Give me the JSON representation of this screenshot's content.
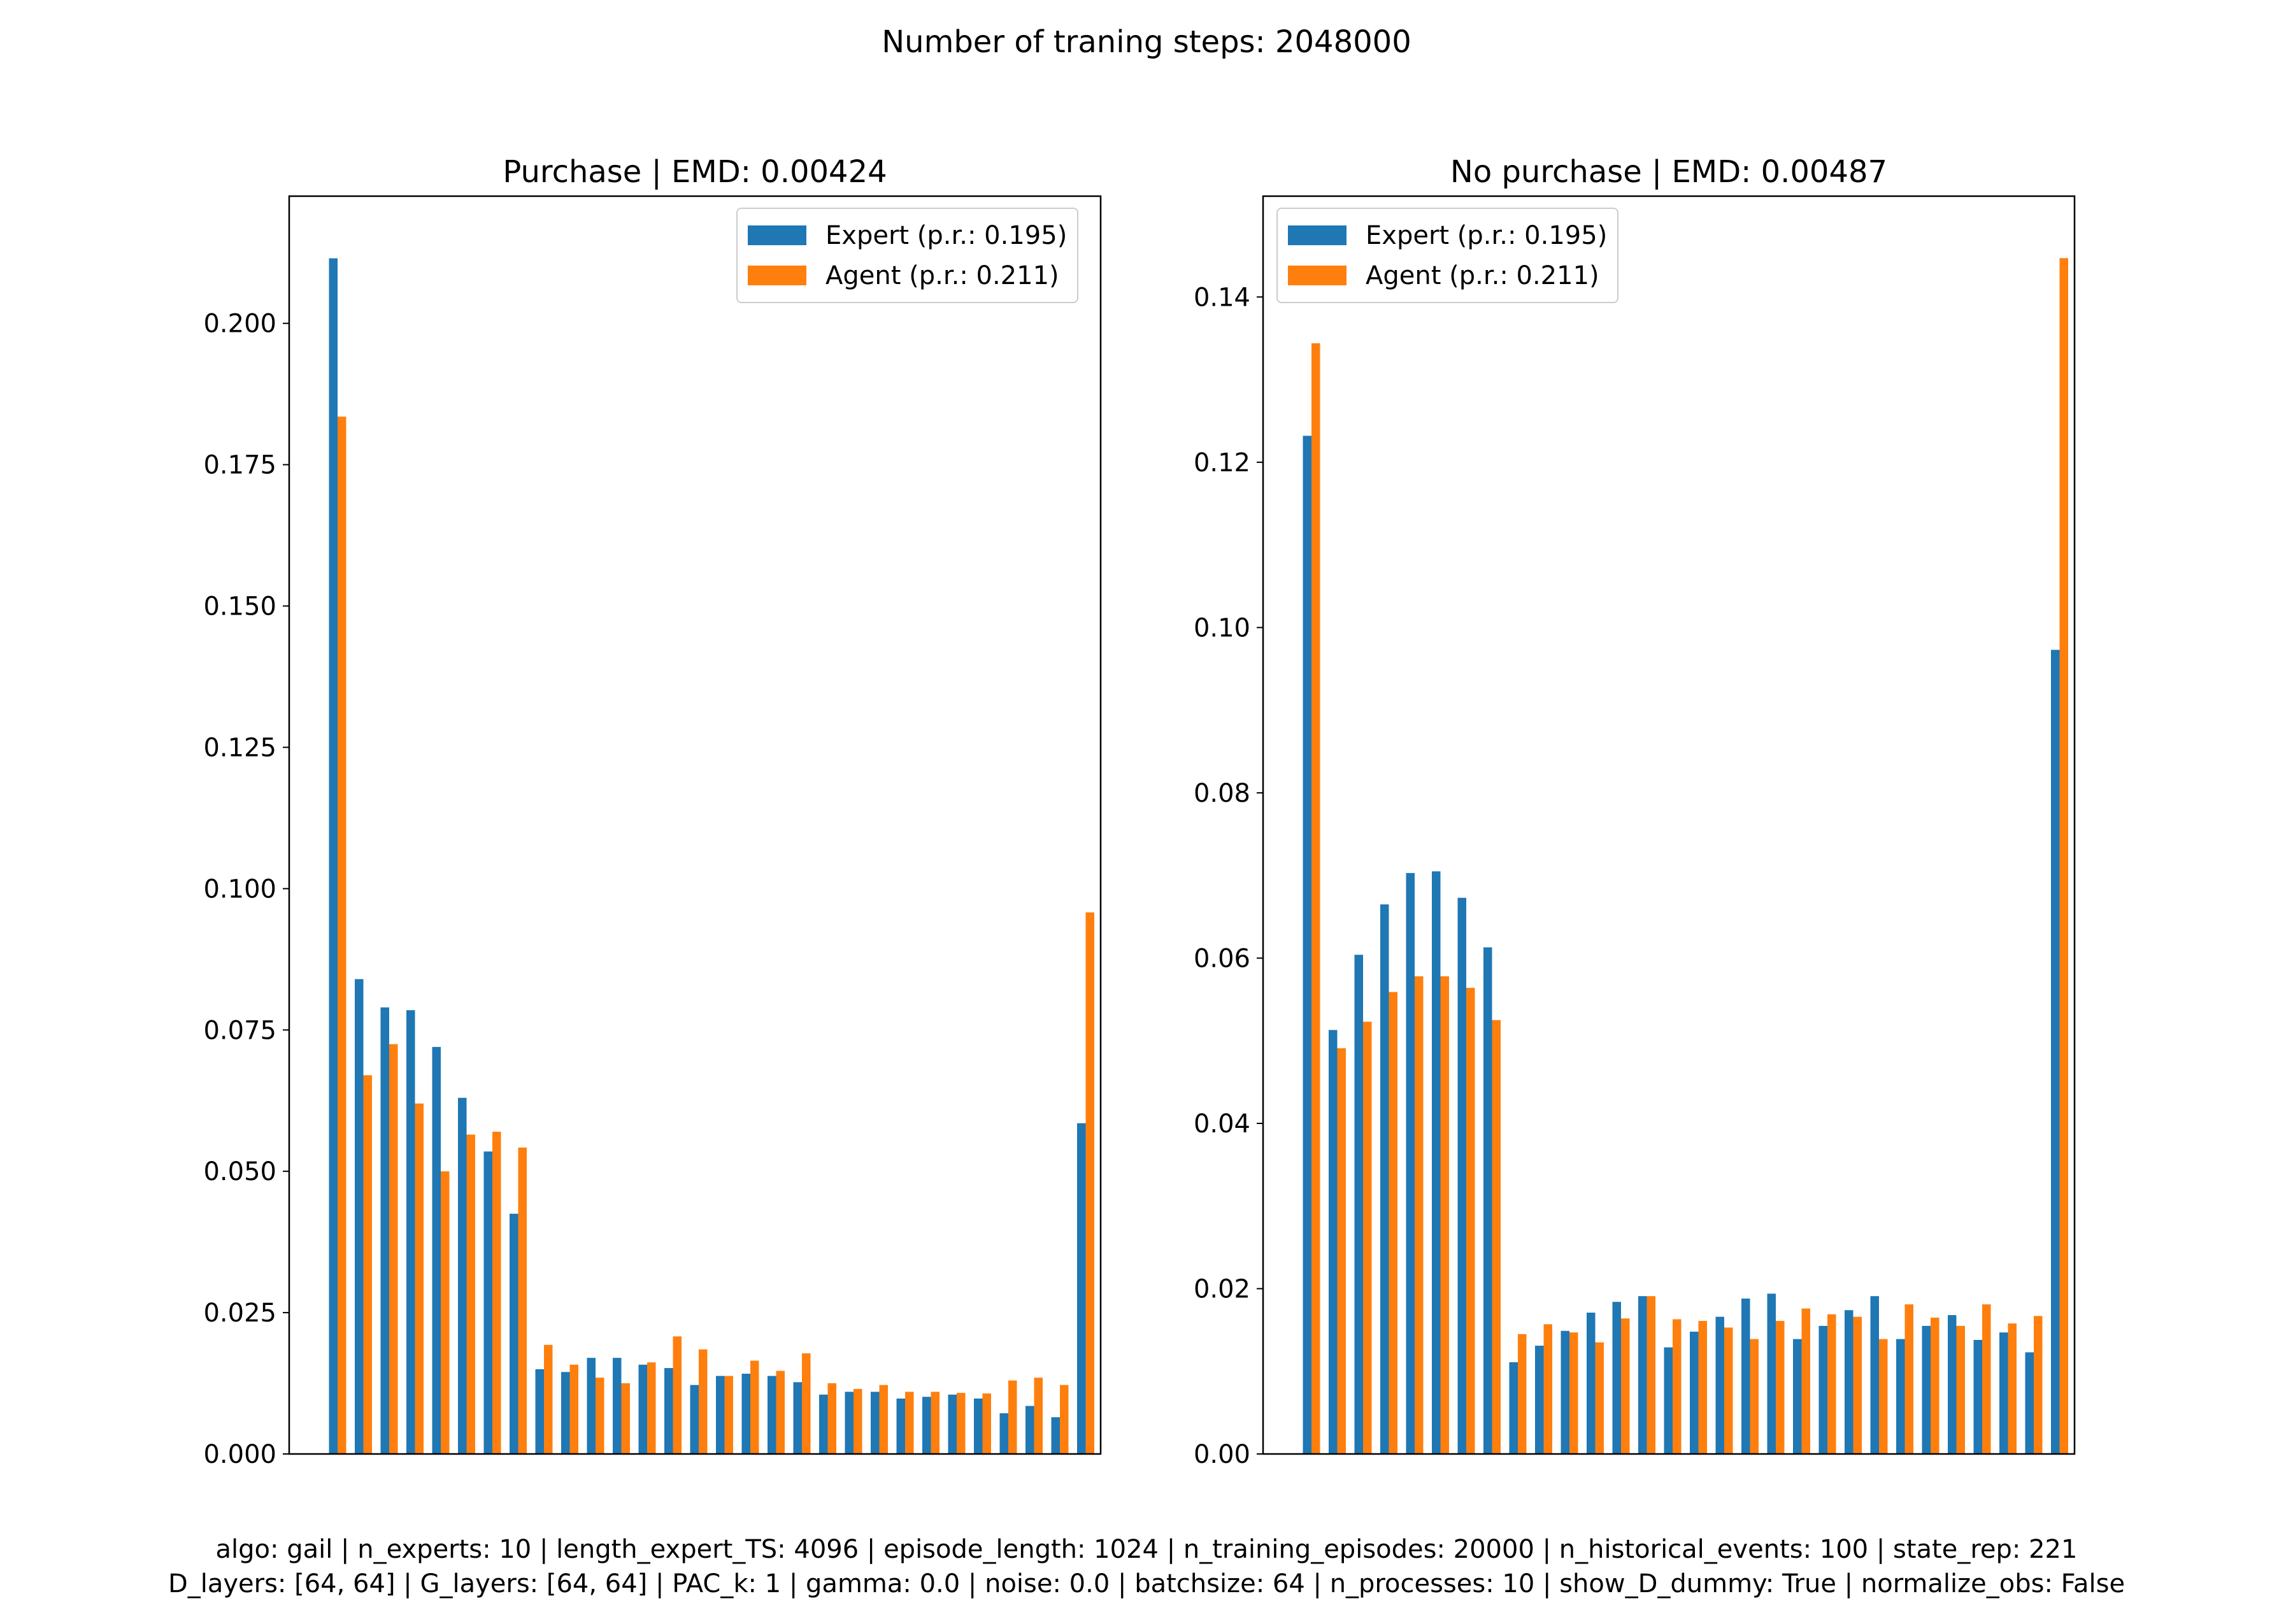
{
  "suptitle": "Number of traning steps: 2048000",
  "footer": {
    "line1": "algo: gail | n_experts: 10 | length_expert_TS: 4096 | episode_length: 1024 | n_training_episodes: 20000 | n_historical_events: 100 | state_rep: 221",
    "line2": "D_layers: [64, 64] | G_layers: [64, 64] | PAC_k: 1 | gamma: 0.0 | noise: 0.0 | batchsize: 64 | n_processes: 10 | show_D_dummy: True | normalize_obs: False"
  },
  "colors": {
    "expert": "#1f77b4",
    "agent": "#ff7f0e"
  },
  "legend": {
    "expert_label": "Expert (p.r.: 0.195)",
    "agent_label": "Agent (p.r.: 0.211)"
  },
  "chart_data": [
    {
      "type": "bar",
      "title": "Purchase | EMD: 0.00424",
      "xlabel": "",
      "ylabel": "",
      "ylim": [
        0,
        0.2225
      ],
      "yticks": [
        "0.000",
        "0.025",
        "0.050",
        "0.075",
        "0.100",
        "0.125",
        "0.150",
        "0.175",
        "0.200"
      ],
      "ytick_values": [
        0,
        0.025,
        0.05,
        0.075,
        0.1,
        0.125,
        0.15,
        0.175,
        0.2
      ],
      "legend_position": "top-right",
      "series": [
        {
          "name": "Expert (p.r.: 0.195)",
          "values": [
            0.2115,
            0.084,
            0.079,
            0.0785,
            0.072,
            0.063,
            0.0535,
            0.0425,
            0.015,
            0.0145,
            0.017,
            0.017,
            0.0158,
            0.0152,
            0.0122,
            0.0138,
            0.0142,
            0.0138,
            0.0127,
            0.0105,
            0.011,
            0.011,
            0.0098,
            0.0101,
            0.0105,
            0.0098,
            0.0072,
            0.0085,
            0.0065,
            0.0585
          ]
        },
        {
          "name": "Agent (p.r.: 0.211)",
          "values": [
            0.1835,
            0.067,
            0.0725,
            0.062,
            0.05,
            0.0565,
            0.057,
            0.0542,
            0.0193,
            0.0158,
            0.0135,
            0.0125,
            0.0162,
            0.0208,
            0.0185,
            0.0138,
            0.0165,
            0.0147,
            0.0178,
            0.0125,
            0.0115,
            0.0122,
            0.011,
            0.011,
            0.0108,
            0.0107,
            0.013,
            0.0135,
            0.0122,
            0.0958
          ]
        }
      ]
    },
    {
      "type": "bar",
      "title": "No purchase | EMD: 0.00487",
      "xlabel": "",
      "ylabel": "",
      "ylim": [
        0,
        0.1522
      ],
      "yticks": [
        "0.00",
        "0.02",
        "0.04",
        "0.06",
        "0.08",
        "0.10",
        "0.12",
        "0.14"
      ],
      "ytick_values": [
        0,
        0.02,
        0.04,
        0.06,
        0.08,
        0.1,
        0.12,
        0.14
      ],
      "legend_position": "top-left",
      "series": [
        {
          "name": "Expert (p.r.: 0.195)",
          "values": [
            0.1232,
            0.0513,
            0.0604,
            0.0665,
            0.0703,
            0.0705,
            0.0673,
            0.0613,
            0.0111,
            0.0131,
            0.0149,
            0.0171,
            0.0184,
            0.0191,
            0.0129,
            0.0148,
            0.0166,
            0.0188,
            0.0194,
            0.0139,
            0.0155,
            0.0174,
            0.0191,
            0.0139,
            0.0155,
            0.0168,
            0.0138,
            0.0147,
            0.0123,
            0.0973
          ]
        },
        {
          "name": "Agent (p.r.: 0.211)",
          "values": [
            0.1344,
            0.0491,
            0.0523,
            0.0559,
            0.0578,
            0.0578,
            0.0564,
            0.0525,
            0.0145,
            0.0157,
            0.0147,
            0.0135,
            0.0164,
            0.0191,
            0.0163,
            0.0161,
            0.0153,
            0.0139,
            0.0161,
            0.0176,
            0.0169,
            0.0166,
            0.0139,
            0.0181,
            0.0165,
            0.0155,
            0.0181,
            0.0158,
            0.0167,
            0.1447
          ]
        }
      ]
    }
  ]
}
